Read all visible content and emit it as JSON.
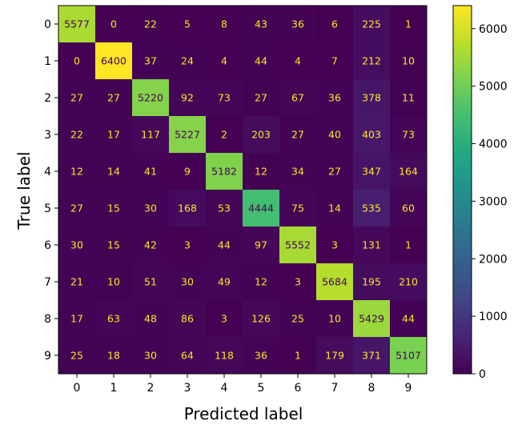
{
  "chart_data": {
    "type": "heatmap",
    "title": "",
    "xlabel": "Predicted label",
    "ylabel": "True label",
    "x_categories": [
      "0",
      "1",
      "2",
      "3",
      "4",
      "5",
      "6",
      "7",
      "8",
      "9"
    ],
    "y_categories": [
      "0",
      "1",
      "2",
      "3",
      "4",
      "5",
      "6",
      "7",
      "8",
      "9"
    ],
    "matrix": [
      [
        5577,
        0,
        22,
        5,
        8,
        43,
        36,
        6,
        225,
        1
      ],
      [
        0,
        6400,
        37,
        24,
        4,
        44,
        4,
        7,
        212,
        10
      ],
      [
        27,
        27,
        5220,
        92,
        73,
        27,
        67,
        36,
        378,
        11
      ],
      [
        22,
        17,
        117,
        5227,
        2,
        203,
        27,
        40,
        403,
        73
      ],
      [
        12,
        14,
        41,
        9,
        5182,
        12,
        34,
        27,
        347,
        164
      ],
      [
        27,
        15,
        30,
        168,
        53,
        4444,
        75,
        14,
        535,
        60
      ],
      [
        30,
        15,
        42,
        3,
        44,
        97,
        5552,
        3,
        131,
        1
      ],
      [
        21,
        10,
        51,
        30,
        49,
        12,
        3,
        5684,
        195,
        210
      ],
      [
        17,
        63,
        48,
        86,
        3,
        126,
        25,
        10,
        5429,
        44
      ],
      [
        25,
        18,
        30,
        64,
        118,
        36,
        1,
        179,
        371,
        5107
      ]
    ],
    "colormap": "viridis",
    "colorbar": {
      "range": [
        0,
        6400
      ],
      "ticks": [
        0,
        1000,
        2000,
        3000,
        4000,
        5000,
        6000
      ],
      "tick_labels": [
        "0",
        "1000",
        "2000",
        "3000",
        "4000",
        "5000",
        "6000"
      ]
    },
    "grid": false,
    "text_color_dark": "#fde725",
    "text_color_light": "#440154"
  }
}
